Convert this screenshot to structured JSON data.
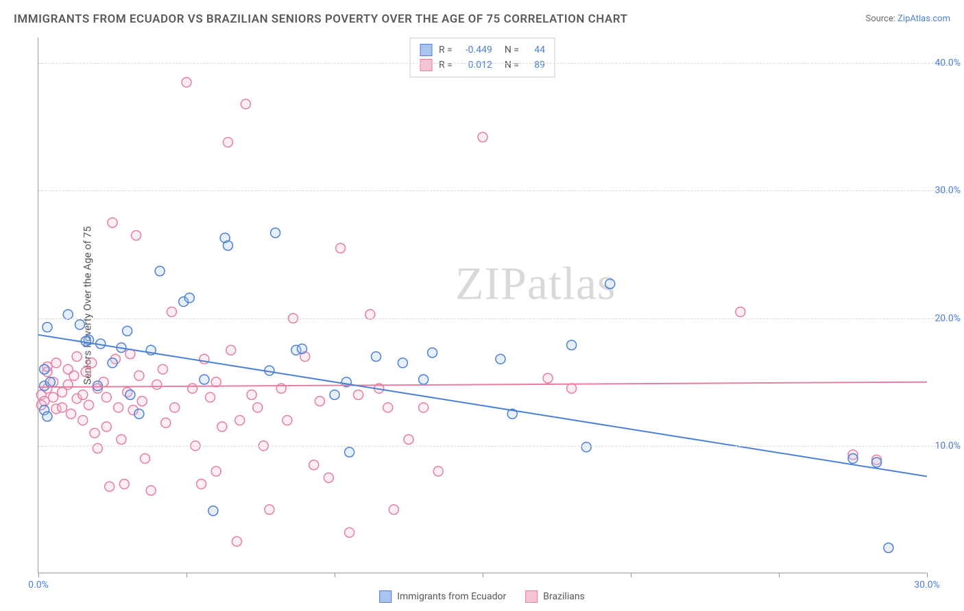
{
  "title": "IMMIGRANTS FROM ECUADOR VS BRAZILIAN SENIORS POVERTY OVER THE AGE OF 75 CORRELATION CHART",
  "source_prefix": "Source: ",
  "source_link_text": "ZipAtlas.com",
  "y_axis_label": "Seniors Poverty Over the Age of 75",
  "watermark_a": "ZIP",
  "watermark_b": "atlas",
  "chart": {
    "type": "scatter",
    "xlim": [
      0,
      30
    ],
    "ylim": [
      0,
      42
    ],
    "x_ticks": [
      0,
      5,
      10,
      15,
      20,
      25,
      30
    ],
    "x_tick_labels": {
      "0": "0.0%",
      "30": "30.0%"
    },
    "y_gridlines": [
      10,
      20,
      30,
      40
    ],
    "y_tick_labels": {
      "10": "10.0%",
      "20": "20.0%",
      "30": "30.0%",
      "40": "40.0%"
    },
    "background_color": "#ffffff",
    "grid_color": "#d8d8d8",
    "axis_color": "#999999",
    "tick_label_color": "#4c7fd6",
    "marker_radius": 7,
    "marker_stroke_width": 1.5,
    "marker_fill_opacity": 0.28,
    "line_width": 2
  },
  "series": [
    {
      "name": "Immigrants from Ecuador",
      "color_stroke": "#4c7fd6",
      "color_fill": "#a9c5ee",
      "R_label": "R =",
      "R_value": "-0.449",
      "N_label": "N =",
      "N_value": "44",
      "trend": {
        "x1": 0,
        "y1": 18.7,
        "x2": 30,
        "y2": 7.6
      },
      "points": [
        [
          0.3,
          19.3
        ],
        [
          0.2,
          16.0
        ],
        [
          0.2,
          14.7
        ],
        [
          0.4,
          15.0
        ],
        [
          0.2,
          12.8
        ],
        [
          0.3,
          12.3
        ],
        [
          1.0,
          20.3
        ],
        [
          1.4,
          19.5
        ],
        [
          1.7,
          18.3
        ],
        [
          1.6,
          18.2
        ],
        [
          2.0,
          14.7
        ],
        [
          2.1,
          18.0
        ],
        [
          2.5,
          16.5
        ],
        [
          2.8,
          17.7
        ],
        [
          3.0,
          19.0
        ],
        [
          3.1,
          14.0
        ],
        [
          3.4,
          12.5
        ],
        [
          3.8,
          17.5
        ],
        [
          4.1,
          23.7
        ],
        [
          4.9,
          21.3
        ],
        [
          5.1,
          21.6
        ],
        [
          5.6,
          15.2
        ],
        [
          5.9,
          4.9
        ],
        [
          6.3,
          26.3
        ],
        [
          6.4,
          25.7
        ],
        [
          7.8,
          15.9
        ],
        [
          8.0,
          26.7
        ],
        [
          8.7,
          17.5
        ],
        [
          8.9,
          17.6
        ],
        [
          10.0,
          14.0
        ],
        [
          10.4,
          15.0
        ],
        [
          10.5,
          9.5
        ],
        [
          11.4,
          17.0
        ],
        [
          12.3,
          16.5
        ],
        [
          13.0,
          15.2
        ],
        [
          13.3,
          17.3
        ],
        [
          15.6,
          16.8
        ],
        [
          16.0,
          12.5
        ],
        [
          18.0,
          17.9
        ],
        [
          18.5,
          9.9
        ],
        [
          19.3,
          22.7
        ],
        [
          27.5,
          9.0
        ],
        [
          28.3,
          8.7
        ],
        [
          28.7,
          2.0
        ]
      ]
    },
    {
      "name": "Brazilians",
      "color_stroke": "#e67da2",
      "color_fill": "#f6c3d4",
      "R_label": "R =",
      "R_value": "0.012",
      "N_label": "N =",
      "N_value": "89",
      "trend": {
        "x1": 0,
        "y1": 14.6,
        "x2": 30,
        "y2": 15.0
      },
      "points": [
        [
          0.1,
          14.0
        ],
        [
          0.1,
          13.2
        ],
        [
          0.2,
          13.5
        ],
        [
          0.3,
          14.5
        ],
        [
          0.3,
          15.8
        ],
        [
          0.3,
          16.2
        ],
        [
          0.5,
          15.0
        ],
        [
          0.5,
          13.8
        ],
        [
          0.6,
          12.9
        ],
        [
          0.6,
          16.5
        ],
        [
          0.8,
          14.2
        ],
        [
          0.8,
          13.0
        ],
        [
          1.0,
          16.0
        ],
        [
          1.0,
          14.8
        ],
        [
          1.1,
          12.5
        ],
        [
          1.2,
          15.5
        ],
        [
          1.3,
          13.7
        ],
        [
          1.3,
          17.0
        ],
        [
          1.5,
          14.0
        ],
        [
          1.5,
          12.0
        ],
        [
          1.6,
          15.8
        ],
        [
          1.7,
          13.2
        ],
        [
          1.8,
          16.5
        ],
        [
          1.9,
          11.0
        ],
        [
          2.0,
          14.5
        ],
        [
          2.0,
          9.8
        ],
        [
          2.2,
          15.0
        ],
        [
          2.3,
          11.5
        ],
        [
          2.3,
          13.8
        ],
        [
          2.4,
          6.8
        ],
        [
          2.5,
          27.5
        ],
        [
          2.6,
          16.8
        ],
        [
          2.7,
          13.0
        ],
        [
          2.8,
          10.5
        ],
        [
          2.9,
          7.0
        ],
        [
          3.0,
          14.2
        ],
        [
          3.1,
          17.2
        ],
        [
          3.2,
          12.8
        ],
        [
          3.3,
          26.5
        ],
        [
          3.4,
          15.5
        ],
        [
          3.5,
          13.5
        ],
        [
          3.6,
          9.0
        ],
        [
          3.8,
          6.5
        ],
        [
          4.0,
          14.8
        ],
        [
          4.2,
          16.0
        ],
        [
          4.3,
          11.8
        ],
        [
          4.5,
          20.5
        ],
        [
          4.6,
          13.0
        ],
        [
          5.0,
          38.5
        ],
        [
          5.2,
          14.5
        ],
        [
          5.3,
          10.0
        ],
        [
          5.5,
          7.0
        ],
        [
          5.6,
          16.8
        ],
        [
          5.8,
          13.8
        ],
        [
          6.0,
          15.0
        ],
        [
          6.0,
          8.0
        ],
        [
          6.2,
          11.5
        ],
        [
          6.4,
          33.8
        ],
        [
          6.5,
          17.5
        ],
        [
          6.7,
          2.5
        ],
        [
          6.8,
          12.0
        ],
        [
          7.0,
          36.8
        ],
        [
          7.2,
          14.0
        ],
        [
          7.4,
          13.0
        ],
        [
          7.6,
          10.0
        ],
        [
          7.8,
          5.0
        ],
        [
          8.2,
          14.5
        ],
        [
          8.4,
          12.0
        ],
        [
          8.6,
          20.0
        ],
        [
          9.0,
          17.0
        ],
        [
          9.3,
          8.5
        ],
        [
          9.5,
          13.5
        ],
        [
          9.8,
          7.5
        ],
        [
          10.2,
          25.5
        ],
        [
          10.5,
          3.2
        ],
        [
          10.8,
          14.0
        ],
        [
          11.2,
          20.3
        ],
        [
          11.5,
          14.5
        ],
        [
          11.8,
          13.0
        ],
        [
          12.0,
          5.0
        ],
        [
          12.5,
          10.5
        ],
        [
          13.0,
          13.0
        ],
        [
          13.5,
          8.0
        ],
        [
          15.0,
          34.2
        ],
        [
          17.2,
          15.3
        ],
        [
          18.0,
          14.5
        ],
        [
          23.7,
          20.5
        ],
        [
          27.5,
          9.3
        ],
        [
          28.3,
          8.9
        ]
      ]
    }
  ],
  "bottom_legend": [
    {
      "label": "Immigrants from Ecuador",
      "stroke": "#4c7fd6",
      "fill": "#a9c5ee"
    },
    {
      "label": "Brazilians",
      "stroke": "#e67da2",
      "fill": "#f6c3d4"
    }
  ]
}
